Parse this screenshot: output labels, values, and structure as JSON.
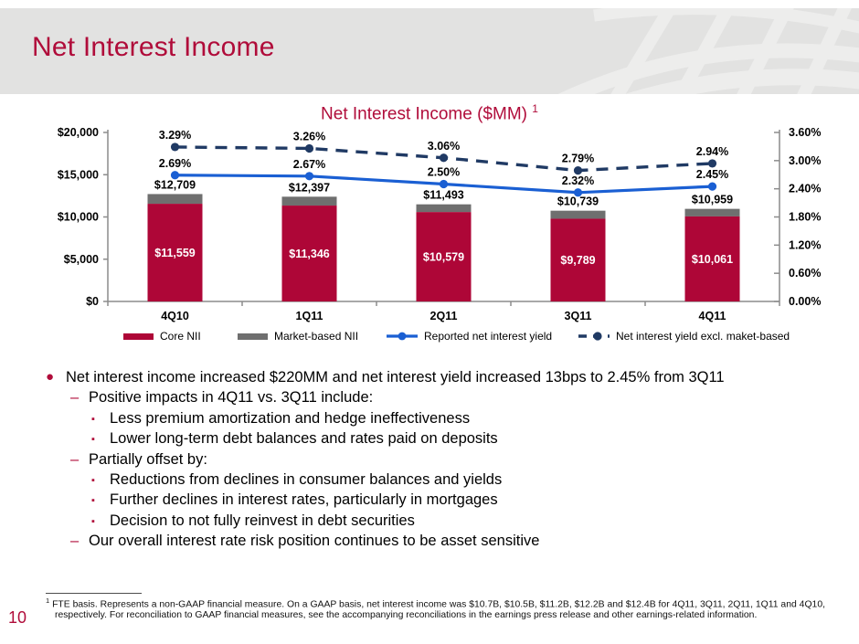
{
  "slide": {
    "title": "Net Interest Income",
    "page_number": "10"
  },
  "colors": {
    "accent_red": "#b00c3a",
    "bar_core": "#ae0637",
    "bar_market": "#6f6f6f",
    "line_reported": "#1a5fd3",
    "line_excl": "#203a64",
    "axis_gray": "#8c8c8c",
    "banner_bg": "#e2e2e1"
  },
  "chart_data": {
    "type": "bar",
    "subtype": "stacked-bars-with-lines-combo",
    "title": "Net Interest Income ($MM)",
    "title_superscript": "1",
    "categories": [
      "4Q10",
      "1Q11",
      "2Q11",
      "3Q11",
      "4Q11"
    ],
    "bars": {
      "core": {
        "name": "Core NII",
        "color": "#ae0637",
        "values": [
          11559,
          11346,
          10579,
          9789,
          10061
        ],
        "labels": [
          "$11,559",
          "$11,346",
          "$10,579",
          "$9,789",
          "$10,061"
        ]
      },
      "market_based": {
        "name": "Market-based NII",
        "color": "#6f6f6f"
      },
      "totals": {
        "values": [
          12709,
          12397,
          11493,
          10739,
          10959
        ],
        "labels": [
          "$12,709",
          "$12,397",
          "$11,493",
          "$10,739",
          "$10,959"
        ]
      }
    },
    "lines": {
      "reported": {
        "name": "Reported net interest yield",
        "style": "solid",
        "color": "#1a5fd3",
        "values": [
          2.69,
          2.67,
          2.5,
          2.32,
          2.45
        ],
        "labels": [
          "2.69%",
          "2.67%",
          "2.50%",
          "2.32%",
          "2.45%"
        ]
      },
      "excl_market": {
        "name": "Net interest yield excl. maket-based",
        "style": "dashed",
        "color": "#203a64",
        "values": [
          3.29,
          3.26,
          3.06,
          2.79,
          2.94
        ],
        "labels": [
          "3.29%",
          "3.26%",
          "3.06%",
          "2.79%",
          "2.94%"
        ]
      }
    },
    "left_axis": {
      "values": [
        0,
        5000,
        10000,
        15000,
        20000
      ],
      "labels": [
        "$0",
        "$5,000",
        "$10,000",
        "$15,000",
        "$20,000"
      ],
      "max": 20000
    },
    "right_axis": {
      "values": [
        0,
        0.6,
        1.2,
        1.8,
        2.4,
        3.0,
        3.6
      ],
      "labels": [
        "0.00%",
        "0.60%",
        "1.20%",
        "1.80%",
        "2.40%",
        "3.00%",
        "3.60%"
      ],
      "max": 3.6
    },
    "grid": "off",
    "legend_position": "bottom"
  },
  "legend": {
    "items": [
      {
        "label": "Core NII",
        "marker": "bar-swatch",
        "color": "#ae0637"
      },
      {
        "label": "Market-based NII",
        "marker": "bar-swatch",
        "color": "#6f6f6f"
      },
      {
        "label": "Reported net interest yield",
        "marker": "solid-line-dot",
        "color": "#1a5fd3"
      },
      {
        "label": "Net interest yield excl. maket-based",
        "marker": "dashed-line-dot",
        "color": "#203a64"
      }
    ]
  },
  "bullets": [
    {
      "level": 1,
      "text": "Net interest income increased $220MM and net interest yield increased 13bps to 2.45% from 3Q11"
    },
    {
      "level": 2,
      "text": "Positive impacts in 4Q11 vs. 3Q11 include:"
    },
    {
      "level": 3,
      "text": "Less premium amortization and hedge ineffectiveness"
    },
    {
      "level": 3,
      "text": "Lower long-term debt balances and rates paid on deposits"
    },
    {
      "level": 2,
      "text": "Partially offset by:"
    },
    {
      "level": 3,
      "text": "Reductions from declines in consumer balances and yields"
    },
    {
      "level": 3,
      "text": "Further declines in interest rates, particularly in mortgages"
    },
    {
      "level": 3,
      "text": "Decision to not fully reinvest in debt securities"
    },
    {
      "level": 2,
      "text": "Our overall interest rate risk position continues to be asset sensitive"
    }
  ],
  "footnote": {
    "marker": "1",
    "text": "FTE basis. Represents a non-GAAP financial measure. On a GAAP basis, net interest income was $10.7B, $10.5B, $11.2B, $12.2B and $12.4B for 4Q11, 3Q11, 2Q11, 1Q11 and 4Q10, respectively. For reconciliation to GAAP financial measures, see the accompanying reconciliations in the earnings press release and other earnings-related information."
  }
}
